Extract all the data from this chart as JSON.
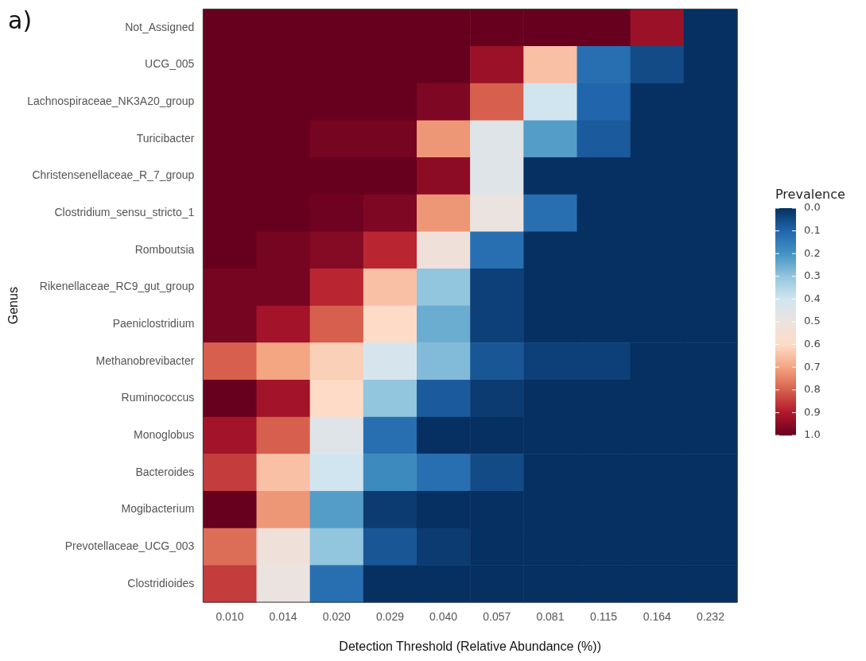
{
  "chart_data": {
    "type": "heatmap",
    "xlabel": "Detection Threshold (Relative Abundance (%))",
    "ylabel": "Genus",
    "clabel": "Prevalence",
    "annotations": [
      "a)"
    ],
    "categories": [
      "0.010",
      "0.014",
      "0.020",
      "0.029",
      "0.040",
      "0.057",
      "0.081",
      "0.115",
      "0.164",
      "0.232"
    ],
    "y_categories": [
      "Not_Assigned",
      "UCG_005",
      "Lachnospiraceae_NK3A20_group",
      "Turicibacter",
      "Christensenellaceae_R_7_group",
      "Clostridium_sensu_stricto_1",
      "Romboutsia",
      "Rikenellaceae_RC9_gut_group",
      "Paeniclostridium",
      "Methanobrevibacter",
      "Ruminococcus",
      "Monoglobus",
      "Bacteroides",
      "Mogibacterium",
      "Prevotellaceae_UCG_003",
      "Clostridioides"
    ],
    "cells": [
      [
        1,
        1,
        1,
        1,
        1,
        1,
        1,
        1,
        0.93,
        0
      ],
      [
        1,
        1,
        1,
        1,
        1,
        0.93,
        0.65,
        0.12,
        0.05,
        0
      ],
      [
        1,
        1,
        1,
        1,
        0.97,
        0.8,
        0.4,
        0.1,
        0,
        0
      ],
      [
        1,
        1,
        0.98,
        0.98,
        0.72,
        0.45,
        0.22,
        0.08,
        0,
        0
      ],
      [
        1,
        1,
        1,
        1,
        0.95,
        0.45,
        0,
        0,
        0,
        0
      ],
      [
        1,
        1,
        0.99,
        0.97,
        0.72,
        0.5,
        0.12,
        0,
        0,
        0
      ],
      [
        1,
        0.98,
        0.96,
        0.88,
        0.52,
        0.12,
        0,
        0,
        0,
        0
      ],
      [
        0.98,
        0.98,
        0.88,
        0.65,
        0.3,
        0.03,
        0,
        0,
        0,
        0
      ],
      [
        0.98,
        0.92,
        0.8,
        0.6,
        0.25,
        0.03,
        0,
        0,
        0,
        0
      ],
      [
        0.8,
        0.7,
        0.62,
        0.42,
        0.28,
        0.07,
        0.03,
        0.03,
        0,
        0
      ],
      [
        1,
        0.92,
        0.6,
        0.3,
        0.08,
        0.02,
        0,
        0,
        0,
        0
      ],
      [
        0.92,
        0.8,
        0.45,
        0.12,
        0,
        0,
        0,
        0,
        0,
        0
      ],
      [
        0.85,
        0.65,
        0.4,
        0.18,
        0.12,
        0.05,
        0,
        0,
        0,
        0
      ],
      [
        1,
        0.72,
        0.22,
        0.02,
        0,
        0,
        0,
        0,
        0,
        0
      ],
      [
        0.78,
        0.52,
        0.3,
        0.07,
        0.02,
        0,
        0,
        0,
        0,
        0
      ],
      [
        0.85,
        0.5,
        0.12,
        0,
        0,
        0,
        0,
        0,
        0,
        0
      ]
    ],
    "clim": [
      0,
      1
    ],
    "cticks": [
      {
        "value": 0,
        "label": "0.0"
      },
      {
        "value": 0.1,
        "label": "0.1"
      },
      {
        "value": 0.2,
        "label": "0.2"
      },
      {
        "value": 0.3,
        "label": "0.3"
      },
      {
        "value": 0.4,
        "label": "0.4"
      },
      {
        "value": 0.5,
        "label": "0.5"
      },
      {
        "value": 0.6,
        "label": "0.6"
      },
      {
        "value": 0.7,
        "label": "0.7"
      },
      {
        "value": 0.8,
        "label": "0.8"
      },
      {
        "value": 0.9,
        "label": "0.9"
      },
      {
        "value": 1,
        "label": "1.0"
      }
    ]
  }
}
